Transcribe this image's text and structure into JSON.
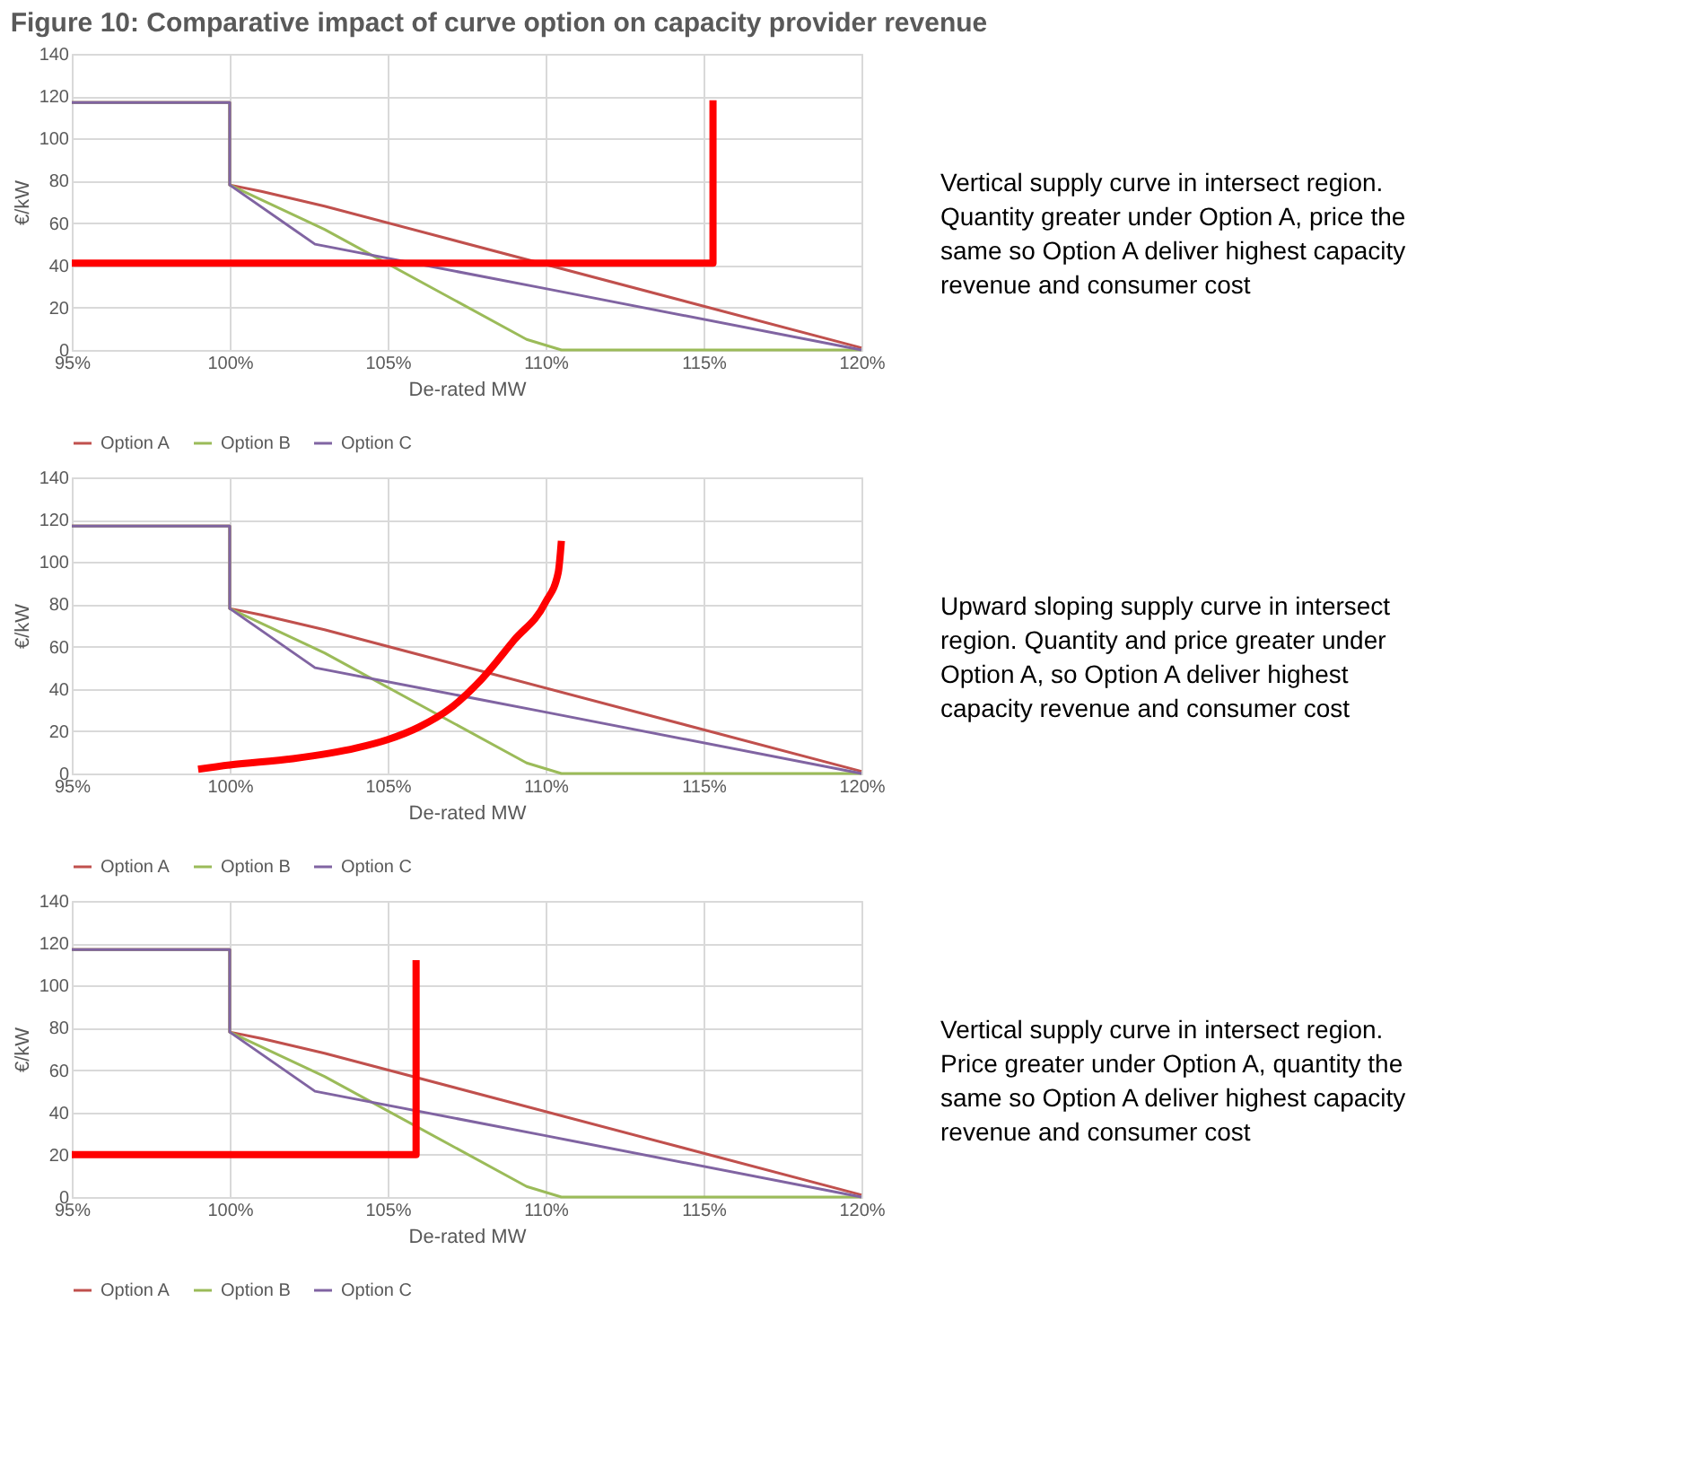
{
  "chart_data": [
    {
      "type": "line",
      "title": "Figure 10: Comparative impact of curve option on capacity provider revenue",
      "xlabel": "De-rated MW",
      "ylabel": "€/kW",
      "xlim": [
        95,
        120
      ],
      "ylim": [
        0,
        140
      ],
      "xticks": [
        {
          "value": 95,
          "label": "95%"
        },
        {
          "value": 100,
          "label": "100%"
        },
        {
          "value": 105,
          "label": "105%"
        },
        {
          "value": 110,
          "label": "110%"
        },
        {
          "value": 115,
          "label": "115%"
        },
        {
          "value": 120,
          "label": "120%"
        }
      ],
      "yticks": [
        0,
        20,
        40,
        60,
        80,
        100,
        120,
        140
      ],
      "grid": true,
      "legend": "bottom",
      "marker": "none",
      "line_style": "solid",
      "annotations": [
        "Vertical supply curve in intersect region. Quantity greater under Option A, price the same so Option A deliver highest capacity revenue and consumer cost"
      ],
      "series": [
        {
          "name": "Option A",
          "color": "#c0504d",
          "x": [
            95,
            100,
            100,
            101,
            103,
            120
          ],
          "values": [
            117,
            117,
            78,
            75,
            68,
            1
          ]
        },
        {
          "name": "Option B",
          "color": "#9bbb59",
          "x": [
            95,
            100,
            100,
            103,
            109.4,
            110.5,
            120
          ],
          "values": [
            117,
            117,
            78,
            57,
            5,
            0,
            0
          ]
        },
        {
          "name": "Option C",
          "color": "#8064a2",
          "x": [
            95,
            100,
            100,
            102.7,
            110,
            120
          ],
          "values": [
            117,
            117,
            78,
            50,
            29,
            0
          ]
        },
        {
          "color": "#ff0000",
          "x": [
            95,
            115.3,
            115.3
          ],
          "values": [
            41,
            41,
            118
          ]
        }
      ]
    },
    {
      "type": "line",
      "xlabel": "De-rated MW",
      "ylabel": "€/kW",
      "xlim": [
        95,
        120
      ],
      "ylim": [
        0,
        140
      ],
      "xticks": [
        {
          "value": 95,
          "label": "95%"
        },
        {
          "value": 100,
          "label": "100%"
        },
        {
          "value": 105,
          "label": "105%"
        },
        {
          "value": 110,
          "label": "110%"
        },
        {
          "value": 115,
          "label": "115%"
        },
        {
          "value": 120,
          "label": "120%"
        }
      ],
      "yticks": [
        0,
        20,
        40,
        60,
        80,
        100,
        120,
        140
      ],
      "grid": true,
      "legend": "bottom",
      "marker": "none",
      "line_style": "solid",
      "annotations": [
        "Upward sloping supply curve in intersect region. Quantity and price greater under Option A, so Option A deliver highest capacity revenue and consumer cost"
      ],
      "series": [
        {
          "name": "Option A",
          "color": "#c0504d",
          "x": [
            95,
            100,
            100,
            101,
            103,
            120
          ],
          "values": [
            117,
            117,
            78,
            75,
            68,
            1
          ]
        },
        {
          "name": "Option B",
          "color": "#9bbb59",
          "x": [
            95,
            100,
            100,
            103,
            109.4,
            110.5,
            120
          ],
          "values": [
            117,
            117,
            78,
            57,
            5,
            0,
            0
          ]
        },
        {
          "name": "Option C",
          "color": "#8064a2",
          "x": [
            95,
            100,
            100,
            102.7,
            110,
            120
          ],
          "values": [
            117,
            117,
            78,
            50,
            29,
            0
          ]
        },
        {
          "color": "#ff0000",
          "x": [
            99,
            100,
            102,
            104,
            105,
            106,
            107,
            108,
            109,
            110,
            110.4,
            110.5
          ],
          "values": [
            2,
            4,
            7,
            12,
            16,
            22,
            31,
            45,
            63,
            81,
            95,
            110
          ]
        }
      ]
    },
    {
      "type": "line",
      "xlabel": "De-rated MW",
      "ylabel": "€/kW",
      "xlim": [
        95,
        120
      ],
      "ylim": [
        0,
        140
      ],
      "xticks": [
        {
          "value": 95,
          "label": "95%"
        },
        {
          "value": 100,
          "label": "100%"
        },
        {
          "value": 105,
          "label": "105%"
        },
        {
          "value": 110,
          "label": "110%"
        },
        {
          "value": 115,
          "label": "115%"
        },
        {
          "value": 120,
          "label": "120%"
        }
      ],
      "yticks": [
        0,
        20,
        40,
        60,
        80,
        100,
        120,
        140
      ],
      "grid": true,
      "legend": "bottom",
      "marker": "none",
      "line_style": "solid",
      "annotations": [
        "Vertical supply curve in intersect region. Price greater under Option A, quantity the same so Option A deliver highest capacity revenue and consumer cost"
      ],
      "series": [
        {
          "name": "Option A",
          "color": "#c0504d",
          "x": [
            95,
            100,
            100,
            101,
            103,
            120
          ],
          "values": [
            117,
            117,
            78,
            75,
            68,
            1
          ]
        },
        {
          "name": "Option B",
          "color": "#9bbb59",
          "x": [
            95,
            100,
            100,
            103,
            109.4,
            110.5,
            120
          ],
          "values": [
            117,
            117,
            78,
            57,
            5,
            0,
            0
          ]
        },
        {
          "name": "Option C",
          "color": "#8064a2",
          "x": [
            95,
            100,
            100,
            102.7,
            110,
            120
          ],
          "values": [
            117,
            117,
            78,
            50,
            29,
            0
          ]
        },
        {
          "color": "#ff0000",
          "x": [
            95,
            105.9,
            105.9
          ],
          "values": [
            20,
            20,
            112
          ]
        }
      ]
    }
  ]
}
